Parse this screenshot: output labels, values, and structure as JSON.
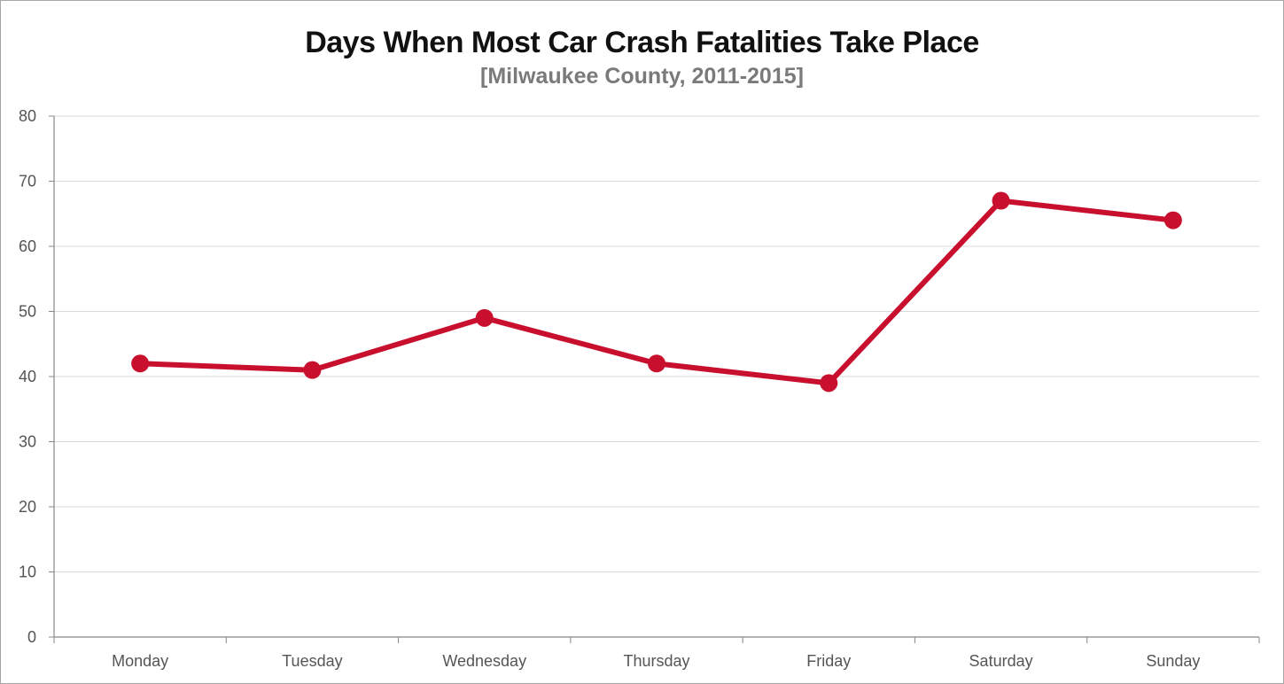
{
  "chart_data": {
    "type": "line",
    "title": "Days When Most Car Crash Fatalities Take Place",
    "subtitle": "[Milwaukee County, 2011-2015]",
    "xlabel": "",
    "ylabel": "",
    "categories": [
      "Monday",
      "Tuesday",
      "Wednesday",
      "Thursday",
      "Friday",
      "Saturday",
      "Sunday"
    ],
    "series": [
      {
        "values": [
          42,
          41,
          49,
          42,
          39,
          67,
          64
        ],
        "color": "#c8102e"
      }
    ],
    "ylim": [
      0,
      80
    ],
    "yticks": [
      0,
      10,
      20,
      30,
      40,
      50,
      60,
      70,
      80
    ],
    "grid": true,
    "legend": "none"
  }
}
